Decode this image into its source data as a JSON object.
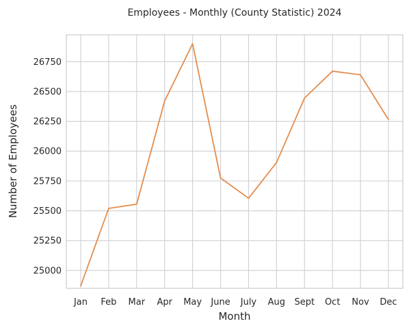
{
  "chart_data": {
    "type": "line",
    "title": "Employees - Monthly (County Statistic) 2024",
    "xlabel": "Month",
    "ylabel": "Number of Employees",
    "categories": [
      "Jan",
      "Feb",
      "Mar",
      "Apr",
      "May",
      "June",
      "July",
      "Aug",
      "Sept",
      "Oct",
      "Nov",
      "Dec"
    ],
    "series": [
      {
        "values": [
          24870,
          25520,
          25555,
          26420,
          26900,
          25775,
          25605,
          25905,
          26445,
          26670,
          26640,
          26265
        ],
        "color": "#e48c4b"
      }
    ],
    "ylim": [
      24850,
      26975
    ],
    "yticks": [
      25000,
      25250,
      25500,
      25750,
      26000,
      26250,
      26500,
      26750
    ],
    "grid": true,
    "legend": "none"
  }
}
